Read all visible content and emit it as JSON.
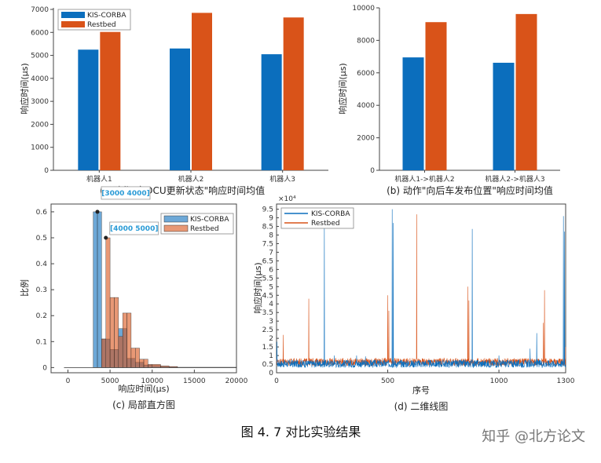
{
  "figure_caption": "图 4. 7  对比实验结果",
  "watermark": "知乎 @北方论文",
  "colors": {
    "kis": "#0b6ebd",
    "rest": "#d95319"
  },
  "chart_data": [
    {
      "id": "a",
      "type": "bar",
      "caption": "(a)动作\"向OCU更新状态\"响应时间均值",
      "ylabel": "响应时间(μs)",
      "categories": [
        "机器人1",
        "机器人2",
        "机器人3"
      ],
      "series": [
        {
          "name": "KIS-CORBA",
          "values": [
            5250,
            5300,
            5050
          ]
        },
        {
          "name": "Restbed",
          "values": [
            6020,
            6850,
            6650
          ]
        }
      ],
      "ylim": [
        0,
        7000
      ],
      "yticks": [
        "0",
        "1000",
        "2000",
        "3000",
        "4000",
        "5000",
        "6000",
        "7000"
      ],
      "legend": "top-left"
    },
    {
      "id": "b",
      "type": "bar",
      "caption": "(b) 动作\"向后车发布位置\"响应时间均值",
      "ylabel": "响应时间(μs)",
      "categories": [
        "机器人1->机器人2",
        "机器人2->机器人3"
      ],
      "series": [
        {
          "name": "KIS-CORBA",
          "values": [
            6950,
            6620
          ]
        },
        {
          "name": "Restbed",
          "values": [
            9120,
            9620
          ]
        }
      ],
      "ylim": [
        0,
        10000
      ],
      "yticks": [
        "0",
        "2000",
        "4000",
        "6000",
        "8000",
        "10000"
      ]
    },
    {
      "id": "c",
      "type": "bar",
      "caption": "(c) 局部直方图",
      "xlabel": "响应时间(μs)",
      "ylabel": "比例",
      "bins": [
        [
          3000,
          3500
        ],
        [
          3500,
          4000
        ],
        [
          4000,
          4500
        ],
        [
          4500,
          5000
        ],
        [
          5000,
          5500
        ],
        [
          5500,
          6000
        ],
        [
          6000,
          6500
        ],
        [
          6500,
          7000
        ],
        [
          7000,
          7500
        ],
        [
          7500,
          8000
        ],
        [
          8000,
          8500
        ],
        [
          8500,
          9000
        ],
        [
          9000,
          9500
        ],
        [
          9500,
          10000
        ],
        [
          10000,
          11000
        ],
        [
          11000,
          12000
        ],
        [
          12000,
          13000
        ],
        [
          13000,
          20000
        ]
      ],
      "series": [
        {
          "name": "KIS-CORBA",
          "values": [
            0.6,
            0.6,
            0.11,
            0.11,
            0.07,
            0.07,
            0.15,
            0.15,
            0.035,
            0.035,
            0.02,
            0.02,
            0.01,
            0.01,
            0.008,
            0.005,
            0.003,
            0.001
          ]
        },
        {
          "name": "Restbed",
          "values": [
            0,
            0,
            0.11,
            0.5,
            0.27,
            0.27,
            0.12,
            0.21,
            0.21,
            0.075,
            0.075,
            0.032,
            0.032,
            0.012,
            0.012,
            0.006,
            0.004,
            0.001
          ]
        }
      ],
      "xlim": [
        -2000,
        20000
      ],
      "ylim": [
        -0.02,
        0.63
      ],
      "xticks": [
        "0",
        "5000",
        "10000",
        "15000",
        "20000"
      ],
      "yticks": [
        "0",
        "0.1",
        "0.2",
        "0.3",
        "0.4",
        "0.5",
        "0.6"
      ],
      "datatips": [
        {
          "text": "[3000 4000]",
          "x": 3500,
          "y": 0.6
        },
        {
          "text": "[4000 5000]",
          "x": 4500,
          "y": 0.5
        }
      ],
      "legend": "top-right"
    },
    {
      "id": "d",
      "type": "line",
      "caption": "(d) 二维线图",
      "xlabel": "序号",
      "ylabel": "响应时间(μs)",
      "exponent": "×10⁴",
      "series": [
        {
          "name": "KIS-CORBA",
          "baseline": 0.5,
          "spikes": [
            [
              2,
              1.8
            ],
            [
              215,
              8.4
            ],
            [
              260,
              1.0
            ],
            [
              360,
              1.0
            ],
            [
              400,
              0.95
            ],
            [
              520,
              9.5
            ],
            [
              525,
              8.7
            ],
            [
              880,
              8.35
            ],
            [
              1000,
              1.0
            ],
            [
              1140,
              1.4
            ],
            [
              1170,
              2.3
            ],
            [
              1290,
              9.1
            ],
            [
              1295,
              8.2
            ]
          ]
        },
        {
          "name": "Restbed",
          "baseline": 0.6,
          "spikes": [
            [
              30,
              2.2
            ],
            [
              145,
              4.3
            ],
            [
              500,
              4.5
            ],
            [
              505,
              3.6
            ],
            [
              630,
              9.2
            ],
            [
              860,
              5.0
            ],
            [
              865,
              4.2
            ],
            [
              1200,
              2.9
            ],
            [
              1205,
              4.8
            ],
            [
              1300,
              1.5
            ]
          ]
        }
      ],
      "xlim": [
        0,
        1300
      ],
      "ylim": [
        0,
        9.8
      ],
      "xticks": [
        "0",
        "500",
        "1000",
        "1300"
      ],
      "yticks": [
        "0",
        "0.5",
        "1",
        "1.5",
        "2",
        "2.5",
        "3",
        "3.5",
        "4",
        "4.5",
        "5",
        "5.5",
        "6",
        "6.5",
        "7",
        "7.5",
        "8",
        "8.5",
        "9",
        "9.5"
      ],
      "legend": "top-left"
    }
  ]
}
